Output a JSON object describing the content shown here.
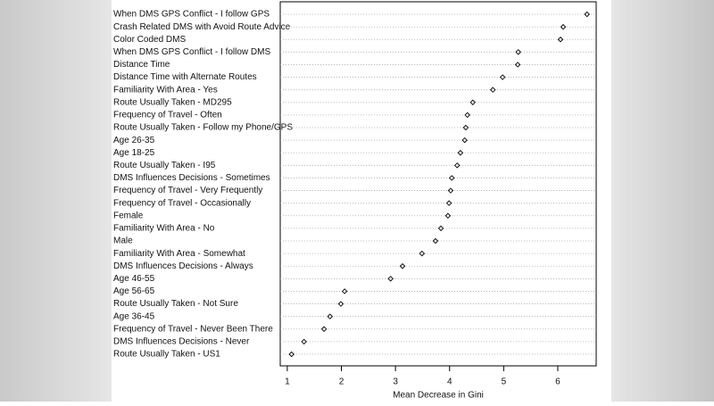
{
  "chart_data": {
    "type": "dot",
    "x_label": "Mean Decrease in Gini",
    "categories": [
      "When DMS GPS Conflict - I follow GPS",
      "Crash Related DMS with Avoid Route Advice",
      "Color Coded DMS",
      "When DMS GPS Conflict - I follow DMS",
      "Distance Time",
      "Distance Time with Alternate Routes",
      "Familiarity With Area - Yes",
      "Route Usually Taken - MD295",
      "Frequency of Travel - Often",
      "Route Usually Taken - Follow my Phone/GPS",
      "Age 26-35",
      "Age 18-25",
      "Route Usually Taken - I95",
      "DMS Influences Decisions - Sometimes",
      "Frequency of Travel - Very Frequently",
      "Frequency of Travel - Occasionally",
      "Female",
      "Familiarity With Area - No",
      "Male",
      "Familiarity With Area - Somewhat",
      "DMS Influences Decisions - Always",
      "Age 46-55",
      "Age 56-65",
      "Route Usually Taken - Not Sure",
      "Age 36-45",
      "Frequency of Travel - Never Been There",
      "DMS Influences Decisions - Never",
      "Route Usually Taken - US1"
    ],
    "values": [
      6.54,
      6.1,
      6.05,
      5.27,
      5.26,
      4.98,
      4.8,
      4.43,
      4.33,
      4.3,
      4.28,
      4.2,
      4.14,
      4.04,
      4.02,
      3.99,
      3.97,
      3.84,
      3.74,
      3.49,
      3.13,
      2.91,
      2.06,
      1.99,
      1.79,
      1.68,
      1.31,
      1.08
    ],
    "color": "#000000",
    "xlim": [
      0.87,
      6.71
    ],
    "xticks": [
      1,
      2,
      3,
      4,
      5,
      6
    ],
    "grid": true
  }
}
